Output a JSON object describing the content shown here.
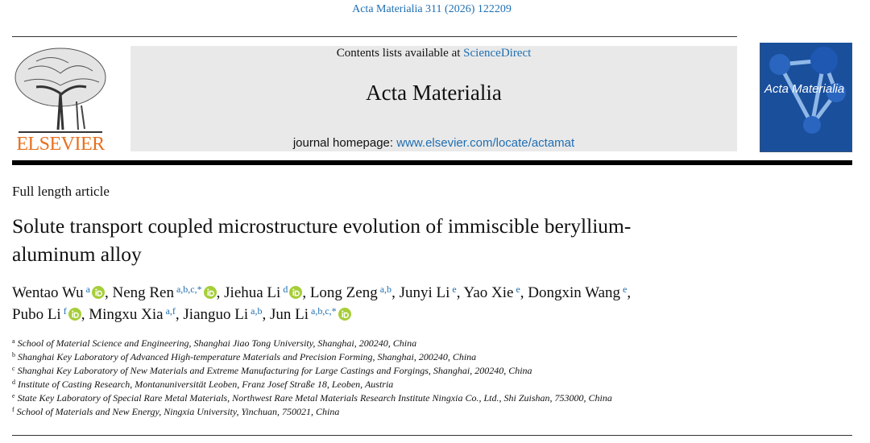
{
  "journal_ref": "Acta Materialia 311 (2026) 122209",
  "publisher": "ELSEVIER",
  "header": {
    "contents_prefix": "Contents lists available at",
    "contents_link": "ScienceDirect",
    "journal_title": "Acta Materialia",
    "homepage_prefix": "journal homepage:",
    "homepage_link": "www.elsevier.com/locate/actamat"
  },
  "cover": {
    "title": "Acta Materialia"
  },
  "article_type": "Full length article",
  "title": "Solute transport coupled microstructure evolution of immiscible beryllium-aluminum alloy",
  "author_separator": ",",
  "authors": [
    {
      "name": "Wentao Wu",
      "sup": "a",
      "orcid": true
    },
    {
      "name": "Neng Ren",
      "sup": "a,b,c,*",
      "orcid": true
    },
    {
      "name": "Jiehua Li",
      "sup": "d",
      "orcid": true
    },
    {
      "name": "Long Zeng",
      "sup": "a,b",
      "orcid": false
    },
    {
      "name": "Junyi Li",
      "sup": "e",
      "orcid": false
    },
    {
      "name": "Yao Xie",
      "sup": "e",
      "orcid": false
    },
    {
      "name": "Dongxin Wang",
      "sup": "e",
      "orcid": false
    },
    {
      "name": "Pubo Li",
      "sup": "f",
      "orcid": true
    },
    {
      "name": "Mingxu Xia",
      "sup": "a,f",
      "orcid": false
    },
    {
      "name": "Jianguo Li",
      "sup": "a,b",
      "orcid": false
    },
    {
      "name": "Jun Li",
      "sup": "a,b,c,*",
      "orcid": true
    }
  ],
  "affiliations": [
    {
      "letter": "a",
      "text": "School of Material Science and Engineering, Shanghai Jiao Tong University, Shanghai, 200240, China"
    },
    {
      "letter": "b",
      "text": "Shanghai Key Laboratory of Advanced High-temperature Materials and Precision Forming, Shanghai, 200240, China"
    },
    {
      "letter": "c",
      "text": "Shanghai Key Laboratory of New Materials and Extreme Manufacturing for Large Castings and Forgings, Shanghai, 200240, China"
    },
    {
      "letter": "d",
      "text": "Institute of Casting Research, Montanuniversität Leoben, Franz Josef Straße 18, Leoben, Austria"
    },
    {
      "letter": "e",
      "text": "State Key Laboratory of Special Rare Metal Materials, Northwest Rare Metal Materials Research Institute Ningxia Co., Ltd., Shi Zuishan, 753000, China"
    },
    {
      "letter": "f",
      "text": "School of Materials and New Energy, Ningxia University, Yinchuan, 750021, China"
    }
  ]
}
